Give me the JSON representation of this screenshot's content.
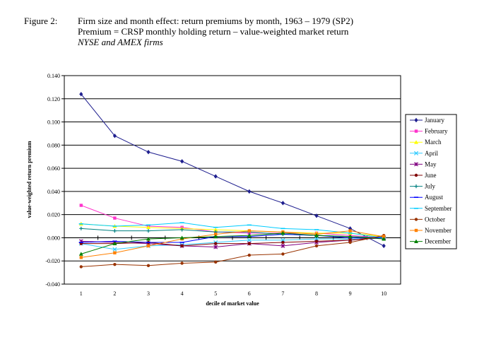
{
  "figure": {
    "label": "Figure 2:",
    "title": "Firm size and month effect: return premiums by month, 1963 – 1979 (SP2)",
    "subtitle": "Premium = CRSP monthly holding return – value-weighted market return",
    "subtitle2": "NYSE and AMEX firms"
  },
  "chart_data": {
    "type": "line",
    "xlabel": "decile of market value",
    "ylabel": "value-weighted return premium",
    "x": [
      1,
      2,
      3,
      4,
      5,
      6,
      7,
      8,
      9,
      10
    ],
    "ylim": [
      -0.04,
      0.14
    ],
    "yticks": [
      "0.140",
      "0.120",
      "0.100",
      "0.080",
      "0.060",
      "0.040",
      "0.020",
      "0.000",
      "-0.020",
      "-0.040"
    ],
    "ytick_values": [
      0.14,
      0.12,
      0.1,
      0.08,
      0.06,
      0.04,
      0.02,
      0.0,
      -0.02,
      -0.04
    ],
    "grid": true,
    "legend": "right",
    "series": [
      {
        "name": "January",
        "color": "#1f1f8f",
        "marker": "diamond",
        "values": [
          0.124,
          0.088,
          0.074,
          0.066,
          0.053,
          0.04,
          0.03,
          0.019,
          0.008,
          -0.007
        ]
      },
      {
        "name": "February",
        "color": "#ff33cc",
        "marker": "square",
        "values": [
          0.028,
          0.017,
          0.01,
          0.009,
          0.005,
          0.004,
          0.004,
          0.004,
          0.002,
          0.0
        ]
      },
      {
        "name": "March",
        "color": "#ffff00",
        "marker": "triangle",
        "values": [
          0.012,
          0.01,
          0.009,
          0.008,
          0.007,
          0.006,
          0.005,
          0.004,
          0.004,
          0.001
        ]
      },
      {
        "name": "April",
        "color": "#33ccff",
        "marker": "x",
        "values": [
          -0.005,
          -0.01,
          -0.007,
          -0.006,
          -0.004,
          -0.002,
          -0.002,
          -0.001,
          -0.001,
          0.0
        ]
      },
      {
        "name": "May",
        "color": "#800080",
        "marker": "star",
        "values": [
          -0.003,
          -0.004,
          -0.005,
          -0.007,
          -0.008,
          -0.005,
          -0.007,
          -0.004,
          -0.002,
          0.0
        ]
      },
      {
        "name": "June",
        "color": "#800000",
        "marker": "circle",
        "values": [
          -0.005,
          -0.005,
          -0.004,
          -0.007,
          -0.005,
          -0.005,
          -0.004,
          -0.003,
          -0.002,
          0.001
        ]
      },
      {
        "name": "July",
        "color": "#008080",
        "marker": "plus",
        "values": [
          0.008,
          0.006,
          0.006,
          0.007,
          0.005,
          0.005,
          0.003,
          0.002,
          0.001,
          0.0
        ]
      },
      {
        "name": "August",
        "color": "#0000ff",
        "marker": "dash",
        "values": [
          -0.004,
          -0.003,
          -0.004,
          -0.004,
          0.001,
          0.001,
          0.003,
          0.002,
          0.0,
          0.0
        ]
      },
      {
        "name": "September",
        "color": "#00ccff",
        "marker": "dash",
        "values": [
          0.012,
          0.01,
          0.011,
          0.013,
          0.009,
          0.011,
          0.008,
          0.007,
          0.004,
          0.0
        ]
      },
      {
        "name": "October",
        "color": "#993300",
        "marker": "circle",
        "values": [
          -0.025,
          -0.023,
          -0.024,
          -0.022,
          -0.021,
          -0.015,
          -0.014,
          -0.007,
          -0.004,
          0.002
        ]
      },
      {
        "name": "November",
        "color": "#ff8000",
        "marker": "square",
        "values": [
          -0.017,
          -0.013,
          -0.007,
          -0.001,
          0.003,
          0.006,
          0.005,
          0.003,
          0.006,
          0.001
        ]
      },
      {
        "name": "December",
        "color": "#008000",
        "marker": "triangle",
        "values": [
          -0.014,
          -0.005,
          -0.001,
          0.0,
          0.001,
          0.002,
          0.004,
          0.002,
          0.001,
          -0.001
        ]
      }
    ]
  }
}
